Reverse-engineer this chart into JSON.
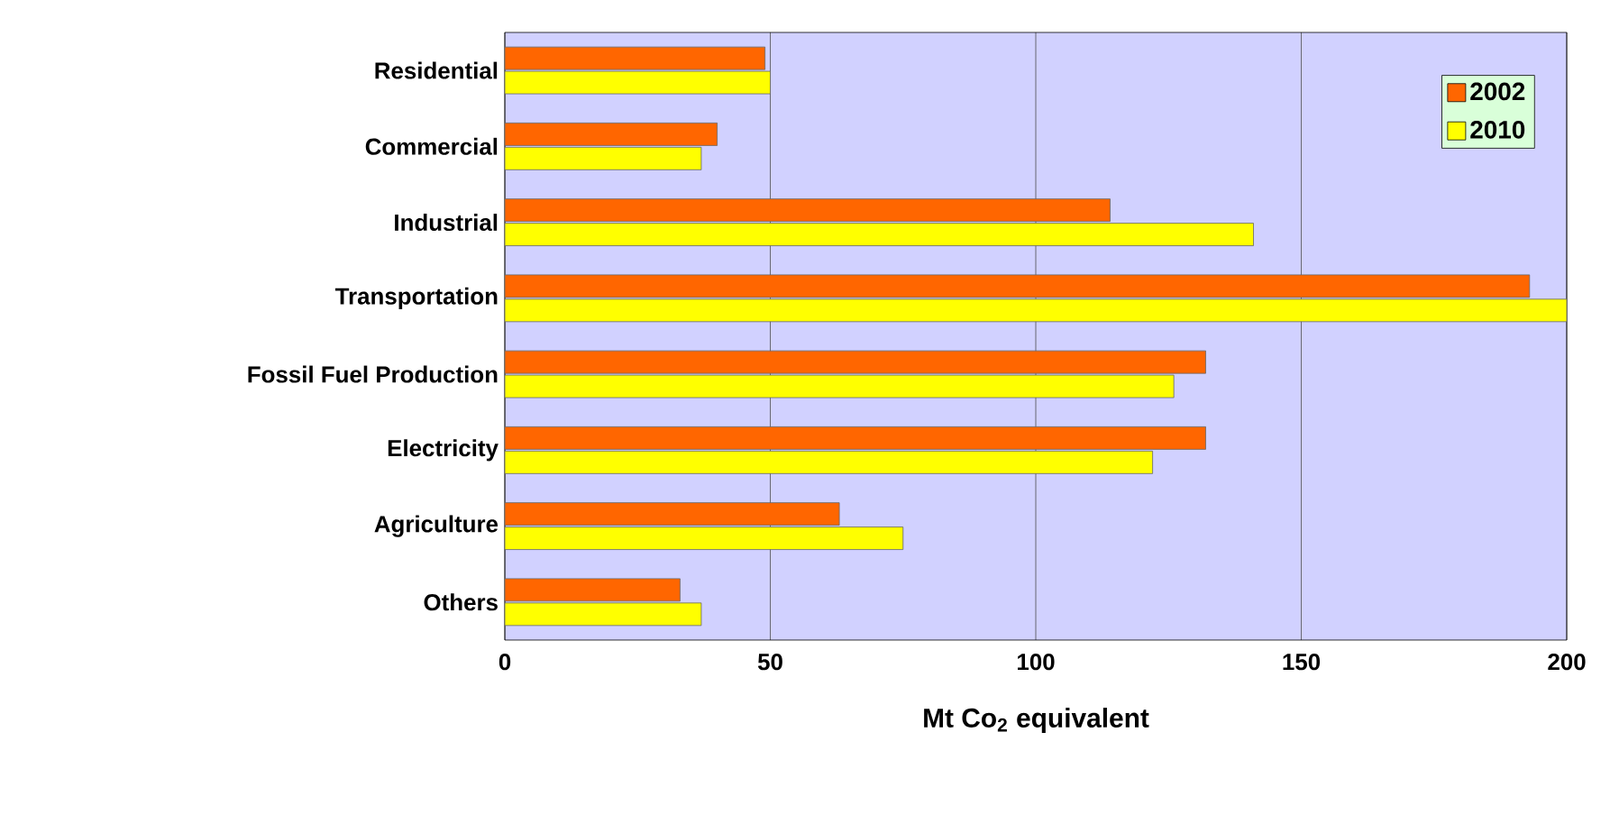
{
  "chart_data": {
    "type": "bar",
    "orientation": "horizontal",
    "xlabel": "Mt Co$_{2}$ equivalent",
    "categories": [
      "Residential",
      "Commercial",
      "Industrial",
      "Transportation",
      "Fossil Fuel Production",
      "Electricity",
      "Agriculture",
      "Others"
    ],
    "series": [
      {
        "name": "2002",
        "color": "#ff6600",
        "values": [
          49,
          40,
          114,
          193,
          132,
          132,
          63,
          33
        ]
      },
      {
        "name": "2010",
        "color": "#ffff00",
        "values": [
          50,
          37,
          141,
          200,
          126,
          122,
          75,
          37
        ]
      }
    ],
    "xlim": [
      0,
      200
    ],
    "xticks": [
      0,
      50,
      100,
      150,
      200
    ],
    "grid": "x",
    "legend": "top right"
  }
}
